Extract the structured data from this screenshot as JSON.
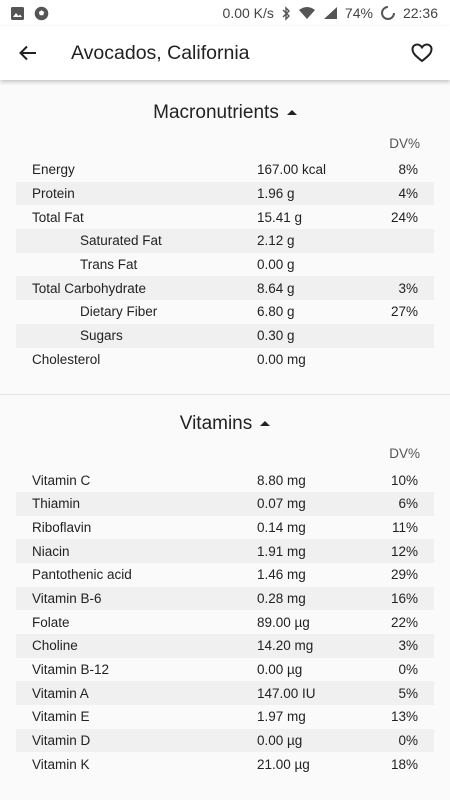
{
  "status_bar": {
    "speed": "0.00 K/s",
    "battery": "74%",
    "time": "22:36",
    "icons": [
      "image-icon",
      "soccer-ball-icon",
      "bluetooth-icon",
      "wifi-icon",
      "signal-icon",
      "battery-saver-icon"
    ]
  },
  "app_bar": {
    "title": "Avocados, California",
    "back_icon": "arrow-left-icon",
    "favorite_icon": "heart-outline-icon"
  },
  "macronutrients": {
    "title": "Macronutrients",
    "dv_label": "DV%",
    "rows": [
      {
        "name": "Energy",
        "amount": "167.00 kcal",
        "dv": "8%",
        "sub": false
      },
      {
        "name": "Protein",
        "amount": "1.96 g",
        "dv": "4%",
        "sub": false
      },
      {
        "name": "Total Fat",
        "amount": "15.41 g",
        "dv": "24%",
        "sub": false
      },
      {
        "name": "Saturated Fat",
        "amount": "2.12 g",
        "dv": "",
        "sub": true
      },
      {
        "name": "Trans Fat",
        "amount": "0.00 g",
        "dv": "",
        "sub": true
      },
      {
        "name": "Total Carbohydrate",
        "amount": "8.64 g",
        "dv": "3%",
        "sub": false
      },
      {
        "name": "Dietary Fiber",
        "amount": "6.80 g",
        "dv": "27%",
        "sub": true
      },
      {
        "name": "Sugars",
        "amount": "0.30 g",
        "dv": "",
        "sub": true
      },
      {
        "name": "Cholesterol",
        "amount": "0.00 mg",
        "dv": "",
        "sub": false
      }
    ]
  },
  "vitamins": {
    "title": "Vitamins",
    "dv_label": "DV%",
    "rows": [
      {
        "name": "Vitamin C",
        "amount": "8.80 mg",
        "dv": "10%"
      },
      {
        "name": "Thiamin",
        "amount": "0.07 mg",
        "dv": "6%"
      },
      {
        "name": "Riboflavin",
        "amount": "0.14 mg",
        "dv": "11%"
      },
      {
        "name": "Niacin",
        "amount": "1.91 mg",
        "dv": "12%"
      },
      {
        "name": "Pantothenic acid",
        "amount": "1.46 mg",
        "dv": "29%"
      },
      {
        "name": "Vitamin B-6",
        "amount": "0.28 mg",
        "dv": "16%"
      },
      {
        "name": "Folate",
        "amount": "89.00 µg",
        "dv": "22%"
      },
      {
        "name": "Choline",
        "amount": "14.20 mg",
        "dv": "3%"
      },
      {
        "name": "Vitamin B-12",
        "amount": "0.00 µg",
        "dv": "0%"
      },
      {
        "name": "Vitamin A",
        "amount": "147.00 IU",
        "dv": "5%"
      },
      {
        "name": "Vitamin E",
        "amount": "1.97 mg",
        "dv": "13%"
      },
      {
        "name": "Vitamin D",
        "amount": "0.00 µg",
        "dv": "0%"
      },
      {
        "name": "Vitamin K",
        "amount": "21.00 µg",
        "dv": "18%"
      }
    ]
  }
}
